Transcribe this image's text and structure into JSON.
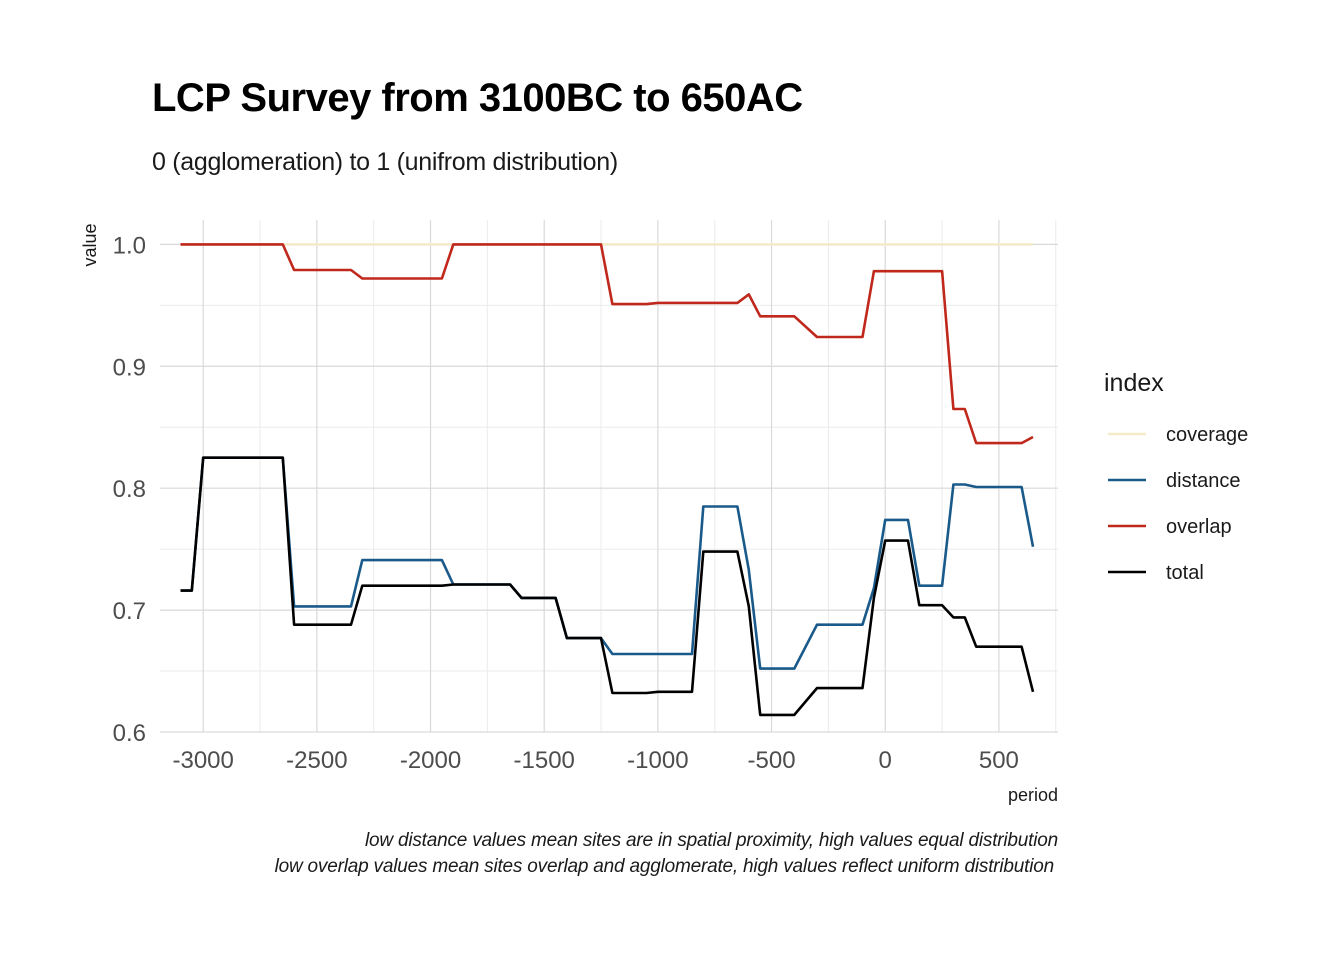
{
  "chart_data": {
    "type": "line",
    "title": "LCP Survey from 3100BC to 650AC",
    "subtitle": "0 (agglomeration) to 1 (unifrom distribution)",
    "xlabel": "period",
    "ylabel": "value",
    "caption_lines": [
      "low distance values mean sites are in spatial proximity, high values equal distribution",
      "low overlap values mean sites  overlap and agglomerate, high values reflect uniform distribution"
    ],
    "xlim": [
      -3190,
      760
    ],
    "ylim": [
      0.6,
      1.02
    ],
    "x_ticks": [
      -3000,
      -2500,
      -2000,
      -1500,
      -1000,
      -500,
      0,
      500
    ],
    "x_tick_labels": [
      "-3000",
      "-2500",
      "-2000",
      "-1500",
      "-1000",
      "-500",
      "0",
      "500"
    ],
    "y_ticks": [
      0.6,
      0.7,
      0.8,
      0.9,
      1.0
    ],
    "y_tick_labels": [
      "0.6",
      "0.7",
      "0.8",
      "0.9",
      "1.0"
    ],
    "grid": true,
    "legend": {
      "title": "index",
      "position": "right"
    },
    "series": [
      {
        "name": "coverage",
        "color": "#f5ebc8",
        "points": [
          [
            -3100,
            1.0
          ],
          [
            650,
            1.0
          ]
        ]
      },
      {
        "name": "distance",
        "color": "#1a5a8a",
        "points": [
          [
            -3100,
            0.716
          ],
          [
            -3050,
            0.716
          ],
          [
            -3000,
            0.825
          ],
          [
            -2650,
            0.825
          ],
          [
            -2600,
            0.703
          ],
          [
            -2350,
            0.703
          ],
          [
            -2300,
            0.741
          ],
          [
            -1950,
            0.741
          ],
          [
            -1900,
            0.721
          ],
          [
            -1650,
            0.721
          ],
          [
            -1600,
            0.71
          ],
          [
            -1450,
            0.71
          ],
          [
            -1400,
            0.677
          ],
          [
            -1250,
            0.677
          ],
          [
            -1200,
            0.664
          ],
          [
            -850,
            0.664
          ],
          [
            -800,
            0.785
          ],
          [
            -650,
            0.785
          ],
          [
            -600,
            0.733
          ],
          [
            -550,
            0.652
          ],
          [
            -400,
            0.652
          ],
          [
            -300,
            0.688
          ],
          [
            -100,
            0.688
          ],
          [
            -50,
            0.718
          ],
          [
            0,
            0.774
          ],
          [
            100,
            0.774
          ],
          [
            150,
            0.72
          ],
          [
            250,
            0.72
          ],
          [
            300,
            0.803
          ],
          [
            350,
            0.803
          ],
          [
            400,
            0.801
          ],
          [
            600,
            0.801
          ],
          [
            650,
            0.752
          ]
        ]
      },
      {
        "name": "overlap",
        "color": "#c0281c",
        "points": [
          [
            -3100,
            1.0
          ],
          [
            -2650,
            1.0
          ],
          [
            -2600,
            0.979
          ],
          [
            -2350,
            0.979
          ],
          [
            -2300,
            0.972
          ],
          [
            -1950,
            0.972
          ],
          [
            -1900,
            1.0
          ],
          [
            -1250,
            1.0
          ],
          [
            -1200,
            0.951
          ],
          [
            -1050,
            0.951
          ],
          [
            -1000,
            0.952
          ],
          [
            -800,
            0.952
          ],
          [
            -650,
            0.952
          ],
          [
            -600,
            0.959
          ],
          [
            -550,
            0.941
          ],
          [
            -400,
            0.941
          ],
          [
            -300,
            0.924
          ],
          [
            -100,
            0.924
          ],
          [
            -50,
            0.978
          ],
          [
            250,
            0.978
          ],
          [
            300,
            0.865
          ],
          [
            350,
            0.865
          ],
          [
            400,
            0.837
          ],
          [
            600,
            0.837
          ],
          [
            650,
            0.842
          ]
        ]
      },
      {
        "name": "total",
        "color": "#000000",
        "points": [
          [
            -3100,
            0.716
          ],
          [
            -3050,
            0.716
          ],
          [
            -3000,
            0.825
          ],
          [
            -2650,
            0.825
          ],
          [
            -2600,
            0.688
          ],
          [
            -2350,
            0.688
          ],
          [
            -2300,
            0.72
          ],
          [
            -1950,
            0.72
          ],
          [
            -1900,
            0.721
          ],
          [
            -1650,
            0.721
          ],
          [
            -1600,
            0.71
          ],
          [
            -1450,
            0.71
          ],
          [
            -1400,
            0.677
          ],
          [
            -1250,
            0.677
          ],
          [
            -1200,
            0.632
          ],
          [
            -1050,
            0.632
          ],
          [
            -1000,
            0.633
          ],
          [
            -850,
            0.633
          ],
          [
            -800,
            0.748
          ],
          [
            -650,
            0.748
          ],
          [
            -600,
            0.703
          ],
          [
            -550,
            0.614
          ],
          [
            -400,
            0.614
          ],
          [
            -300,
            0.636
          ],
          [
            -100,
            0.636
          ],
          [
            -50,
            0.71
          ],
          [
            0,
            0.757
          ],
          [
            100,
            0.757
          ],
          [
            150,
            0.704
          ],
          [
            250,
            0.704
          ],
          [
            300,
            0.694
          ],
          [
            350,
            0.694
          ],
          [
            400,
            0.67
          ],
          [
            600,
            0.67
          ],
          [
            650,
            0.633
          ]
        ]
      }
    ]
  }
}
